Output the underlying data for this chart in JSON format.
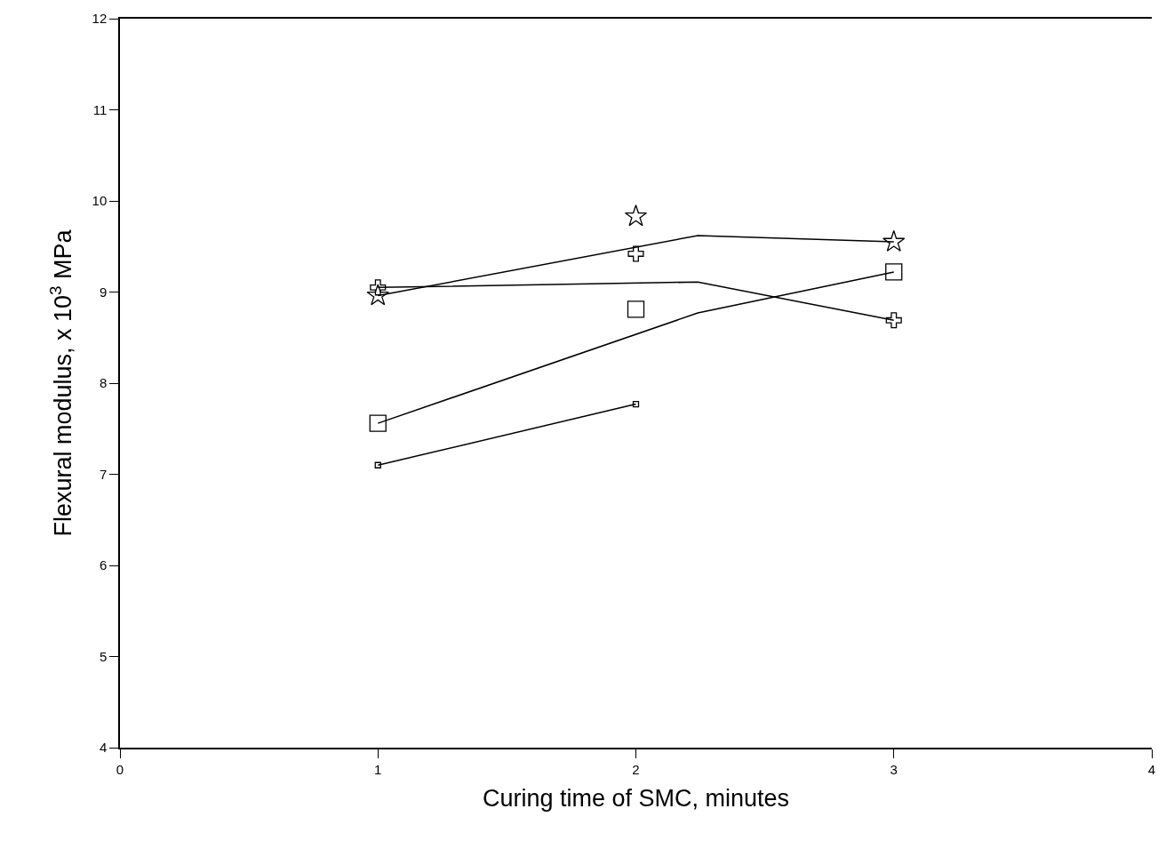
{
  "chart_data": {
    "type": "scatter",
    "xlabel": "Curing time of SMC, minutes",
    "ylabel": "Flexural modulus, x 10$^{3}$ MPa",
    "xlim": [
      0,
      4
    ],
    "xticks": [
      0,
      1,
      2,
      3,
      4
    ],
    "ylim": [
      4,
      12
    ],
    "yticks": [
      4,
      5,
      6,
      7,
      8,
      9,
      10,
      11,
      12
    ],
    "series": [
      {
        "type": "scatter",
        "marker": "square",
        "color": "#000000",
        "x": [
          1,
          2
        ],
        "values": [
          7.1,
          7.77
        ]
      },
      {
        "type": "scatter",
        "marker": "square",
        "color": "#000000",
        "x": [
          1,
          2,
          3
        ],
        "values": [
          7.56,
          8.81,
          9.22
        ]
      },
      {
        "type": "scatter",
        "marker": "cross",
        "color": "#000000",
        "x": [
          1,
          2,
          3
        ],
        "values": [
          9.05,
          9.42,
          8.69
        ]
      },
      {
        "type": "scatter",
        "marker": "star",
        "color": "#000000",
        "x": [
          1,
          2,
          3
        ],
        "values": [
          8.96,
          9.83,
          9.55
        ]
      },
      {
        "type": "line",
        "line_style": "solid",
        "color": "#000000",
        "x": [
          1,
          2
        ],
        "values": [
          7.1,
          7.77
        ]
      },
      {
        "type": "line",
        "line_style": "solid",
        "color": "#000000",
        "x": [
          1,
          2.24,
          3
        ],
        "values": [
          7.56,
          8.77,
          9.22
        ]
      },
      {
        "type": "line",
        "line_style": "solid",
        "color": "#000000",
        "x": [
          1,
          2.24,
          3
        ],
        "values": [
          9.05,
          9.11,
          8.69
        ]
      },
      {
        "type": "line",
        "line_style": "solid",
        "color": "#000000",
        "x": [
          1,
          2.24,
          3
        ],
        "values": [
          8.96,
          9.62,
          9.55
        ]
      }
    ]
  }
}
